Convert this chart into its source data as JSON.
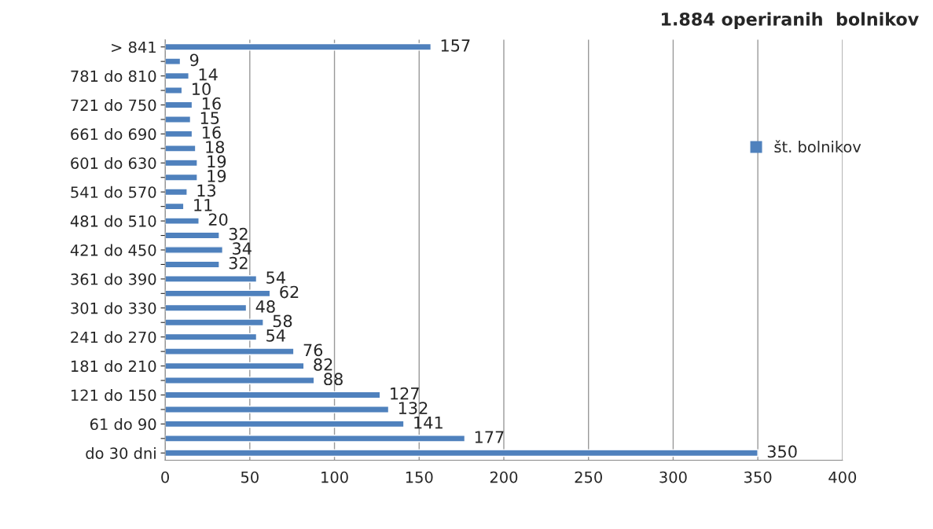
{
  "chart_data": {
    "type": "bar",
    "orientation": "horizontal",
    "title": "1.884 operiranih  bolnikov",
    "categories": [
      "> 841",
      null,
      "781 do 810",
      null,
      "721 do 750",
      null,
      "661 do 690",
      null,
      "601 do 630",
      null,
      "541 do 570",
      null,
      "481 do 510",
      null,
      "421 do 450",
      null,
      "361 do 390",
      null,
      "301 do 330",
      null,
      "241 do 270",
      null,
      "181 do 210",
      null,
      "121 do 150",
      null,
      "61 do 90",
      null,
      "do 30 dni"
    ],
    "series": [
      {
        "name": "št. bolnikov",
        "color": "#4f81bd",
        "values": [
          157,
          9,
          14,
          10,
          16,
          15,
          16,
          18,
          19,
          19,
          13,
          11,
          20,
          32,
          34,
          32,
          54,
          62,
          48,
          58,
          54,
          76,
          82,
          88,
          127,
          132,
          141,
          177,
          350
        ]
      }
    ],
    "xlim": [
      0,
      400
    ],
    "xticks": [
      0,
      50,
      100,
      150,
      200,
      250,
      300,
      350,
      400
    ],
    "grid": "x",
    "legend": "right",
    "data_labels": true
  }
}
